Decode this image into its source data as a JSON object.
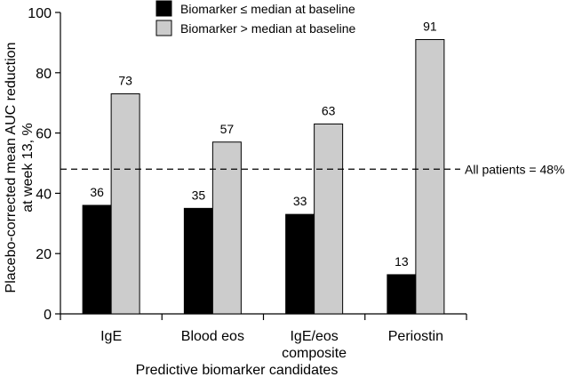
{
  "chart_data": {
    "type": "bar",
    "title": "",
    "xlabel": "Predictive biomarker candidates",
    "ylabel_lines": [
      "Placebo-corrected mean AUC reduction",
      "at week 13, %"
    ],
    "categories": [
      {
        "lines": [
          "IgE"
        ]
      },
      {
        "lines": [
          "Blood eos"
        ]
      },
      {
        "lines": [
          "IgE/eos",
          "composite"
        ]
      },
      {
        "lines": [
          "Periostin"
        ]
      }
    ],
    "series": [
      {
        "name": "Biomarker ≤ median at baseline",
        "color": "#000000",
        "values": [
          36,
          35,
          33,
          13
        ]
      },
      {
        "name": "Biomarker > median at baseline",
        "color": "#cccccc",
        "values": [
          73,
          57,
          63,
          91
        ]
      }
    ],
    "reference_line": {
      "value": 48,
      "label": "All patients = 48%",
      "style": "dashed"
    },
    "ylim": [
      0,
      100
    ],
    "yticks": [
      0,
      20,
      40,
      60,
      80,
      100
    ],
    "grid": false,
    "legend_position": "top"
  }
}
